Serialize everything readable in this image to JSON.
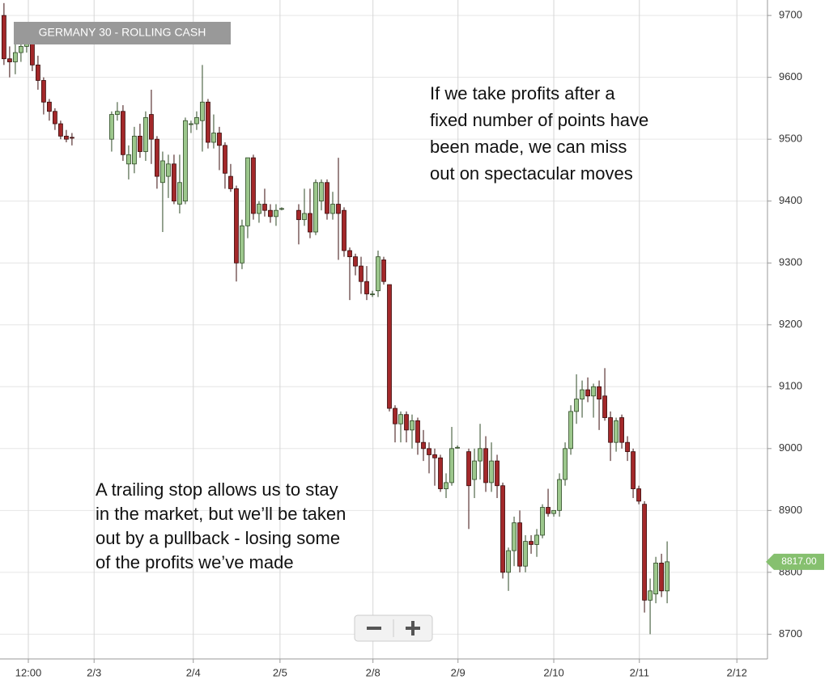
{
  "chart_data": {
    "type": "candlestick",
    "title": "GERMANY 30 - ROLLING CASH",
    "annotations": [
      [
        "If we take profits after a",
        "fixed number of points have",
        "been made, we can miss",
        "out on spectacular moves"
      ],
      [
        "A trailing stop allows us to stay",
        "in the market, but we’ll be taken",
        "out by a pullback - losing some",
        "of the profits we’ve made"
      ]
    ],
    "last_price": {
      "value": 8817,
      "label": "8817.00"
    },
    "up_color": "#9cc78c",
    "down_color": "#a3282a",
    "grid": true,
    "xlim": [
      -0.7,
      134.7
    ],
    "ylim": [
      8660,
      9725
    ],
    "xticks": [
      {
        "value": 4.3,
        "label": "12:00"
      },
      {
        "value": 15.9,
        "label": "2/3"
      },
      {
        "value": 33.4,
        "label": "2/4"
      },
      {
        "value": 48.7,
        "label": "2/5"
      },
      {
        "value": 65.1,
        "label": "2/8"
      },
      {
        "value": 80.1,
        "label": "2/9"
      },
      {
        "value": 97,
        "label": "2/10"
      },
      {
        "value": 112.1,
        "label": "2/11"
      },
      {
        "value": 129.3,
        "label": "2/12"
      }
    ],
    "yticks": [
      8700,
      8800,
      8900,
      9000,
      9100,
      9200,
      9300,
      9400,
      9500,
      9600,
      9700
    ],
    "ohlc": [
      [
        0,
        9700,
        9720,
        9620,
        9630
      ],
      [
        1,
        9630,
        9650,
        9600,
        9625
      ],
      [
        2,
        9625,
        9655,
        9605,
        9640
      ],
      [
        3,
        9640,
        9665,
        9625,
        9650
      ],
      [
        4,
        9650,
        9675,
        9640,
        9660
      ],
      [
        5,
        9660,
        9665,
        9610,
        9620
      ],
      [
        6,
        9620,
        9635,
        9580,
        9595
      ],
      [
        7,
        9595,
        9600,
        9540,
        9560
      ],
      [
        8,
        9560,
        9565,
        9530,
        9545
      ],
      [
        9,
        9545,
        9550,
        9515,
        9525
      ],
      [
        10,
        9525,
        9530,
        9500,
        9505
      ],
      [
        11,
        9505,
        9515,
        9495,
        9500
      ],
      [
        12,
        9503,
        9510,
        9490,
        9502
      ],
      [
        19,
        9500,
        9545,
        9480,
        9540
      ],
      [
        20,
        9540,
        9560,
        9530,
        9545
      ],
      [
        21,
        9545,
        9555,
        9465,
        9475
      ],
      [
        22,
        9460,
        9490,
        9435,
        9475
      ],
      [
        23,
        9460,
        9520,
        9445,
        9505
      ],
      [
        24,
        9505,
        9525,
        9470,
        9480
      ],
      [
        25,
        9480,
        9545,
        9465,
        9535
      ],
      [
        26,
        9540,
        9580,
        9460,
        9500
      ],
      [
        27,
        9500,
        9505,
        9420,
        9440
      ],
      [
        28,
        9430,
        9480,
        9350,
        9465
      ],
      [
        29,
        9440,
        9475,
        9405,
        9460
      ],
      [
        30,
        9460,
        9475,
        9395,
        9400
      ],
      [
        31,
        9395,
        9475,
        9380,
        9430
      ],
      [
        32,
        9400,
        9535,
        9395,
        9530
      ],
      [
        33,
        9525,
        9530,
        9510,
        9525
      ],
      [
        34,
        9525,
        9545,
        9515,
        9535
      ],
      [
        35,
        9530,
        9620,
        9480,
        9560
      ],
      [
        36,
        9560,
        9565,
        9485,
        9495
      ],
      [
        37,
        9495,
        9540,
        9485,
        9510
      ],
      [
        38,
        9510,
        9520,
        9450,
        9490
      ],
      [
        39,
        9490,
        9495,
        9420,
        9445
      ],
      [
        40,
        9440,
        9460,
        9415,
        9420
      ],
      [
        41,
        9420,
        9425,
        9270,
        9300
      ],
      [
        42,
        9300,
        9370,
        9290,
        9360
      ],
      [
        43,
        9360,
        9470,
        9340,
        9470
      ],
      [
        44,
        9470,
        9475,
        9370,
        9380
      ],
      [
        45,
        9380,
        9400,
        9365,
        9395
      ],
      [
        46,
        9395,
        9420,
        9375,
        9385
      ],
      [
        47,
        9385,
        9395,
        9365,
        9375
      ],
      [
        48,
        9375,
        9395,
        9360,
        9385
      ],
      [
        49,
        9388,
        9390,
        9385,
        9388
      ],
      [
        52,
        9385,
        9395,
        9330,
        9370
      ],
      [
        53,
        9370,
        9420,
        9360,
        9380
      ],
      [
        54,
        9380,
        9420,
        9340,
        9350
      ],
      [
        55,
        9350,
        9435,
        9345,
        9430
      ],
      [
        56,
        9400,
        9435,
        9385,
        9430
      ],
      [
        57,
        9430,
        9435,
        9370,
        9380
      ],
      [
        58,
        9380,
        9415,
        9370,
        9395
      ],
      [
        59,
        9395,
        9470,
        9305,
        9380
      ],
      [
        60,
        9385,
        9390,
        9310,
        9320
      ],
      [
        61,
        9320,
        9325,
        9240,
        9310
      ],
      [
        62,
        9310,
        9315,
        9280,
        9295
      ],
      [
        63,
        9295,
        9310,
        9250,
        9270
      ],
      [
        64,
        9270,
        9295,
        9240,
        9250
      ],
      [
        65,
        9250,
        9255,
        9245,
        9250
      ],
      [
        66,
        9255,
        9320,
        9245,
        9310
      ],
      [
        67,
        9305,
        9310,
        9265,
        9270
      ],
      [
        68,
        9265,
        9265,
        9060,
        9065
      ],
      [
        69,
        9065,
        9070,
        9010,
        9040
      ],
      [
        70,
        9040,
        9060,
        9010,
        9055
      ],
      [
        71,
        9055,
        9060,
        9010,
        9030
      ],
      [
        72,
        9030,
        9055,
        9000,
        9045
      ],
      [
        73,
        9045,
        9050,
        8990,
        9010
      ],
      [
        74,
        9010,
        9030,
        8980,
        9000
      ],
      [
        75,
        9000,
        9010,
        8960,
        8990
      ],
      [
        76,
        8990,
        9000,
        8940,
        8985
      ],
      [
        77,
        8985,
        8990,
        8930,
        8935
      ],
      [
        78,
        8935,
        8960,
        8920,
        8945
      ],
      [
        79,
        8945,
        9035,
        8940,
        9000
      ],
      [
        80,
        9002,
        9005,
        9000,
        9002
      ],
      [
        82,
        8995,
        9000,
        8870,
        8940
      ],
      [
        83,
        8950,
        9000,
        8920,
        8980
      ],
      [
        84,
        8980,
        9040,
        8950,
        9000
      ],
      [
        85,
        9000,
        9020,
        8930,
        8945
      ],
      [
        86,
        8945,
        9010,
        8930,
        8980
      ],
      [
        87,
        8980,
        8990,
        8920,
        8940
      ],
      [
        88,
        8940,
        8945,
        8790,
        8800
      ],
      [
        89,
        8800,
        8840,
        8770,
        8835
      ],
      [
        90,
        8835,
        8890,
        8810,
        8880
      ],
      [
        91,
        8880,
        8900,
        8800,
        8810
      ],
      [
        92,
        8810,
        8860,
        8800,
        8850
      ],
      [
        93,
        8850,
        8860,
        8830,
        8845
      ],
      [
        94,
        8845,
        8870,
        8825,
        8860
      ],
      [
        95,
        8860,
        8910,
        8855,
        8905
      ],
      [
        96,
        8905,
        8935,
        8890,
        8895
      ],
      [
        97,
        8895,
        8900,
        8890,
        8900
      ],
      [
        98,
        8900,
        8960,
        8890,
        8950
      ],
      [
        99,
        8950,
        9010,
        8940,
        9000
      ],
      [
        100,
        9000,
        9070,
        8990,
        9060
      ],
      [
        101,
        9060,
        9120,
        9040,
        9080
      ],
      [
        102,
        9080,
        9110,
        9050,
        9095
      ],
      [
        103,
        9095,
        9115,
        9075,
        9085
      ],
      [
        104,
        9085,
        9105,
        9050,
        9100
      ],
      [
        105,
        9100,
        9110,
        9030,
        9080
      ],
      [
        106,
        9085,
        9130,
        9045,
        9050
      ],
      [
        107,
        9050,
        9060,
        8980,
        9010
      ],
      [
        108,
        9010,
        9050,
        8995,
        9045
      ],
      [
        109,
        9050,
        9055,
        9000,
        9010
      ],
      [
        110,
        9010,
        9020,
        8980,
        8995
      ],
      [
        111,
        8995,
        9000,
        8920,
        8935
      ],
      [
        112,
        8935,
        8940,
        8910,
        8915
      ],
      [
        113,
        8910,
        8915,
        8735,
        8755
      ],
      [
        114,
        8755,
        8790,
        8700,
        8770
      ],
      [
        115,
        8765,
        8825,
        8750,
        8815
      ],
      [
        116,
        8815,
        8830,
        8760,
        8770
      ],
      [
        117,
        8770,
        8850,
        8750,
        8817
      ]
    ]
  }
}
